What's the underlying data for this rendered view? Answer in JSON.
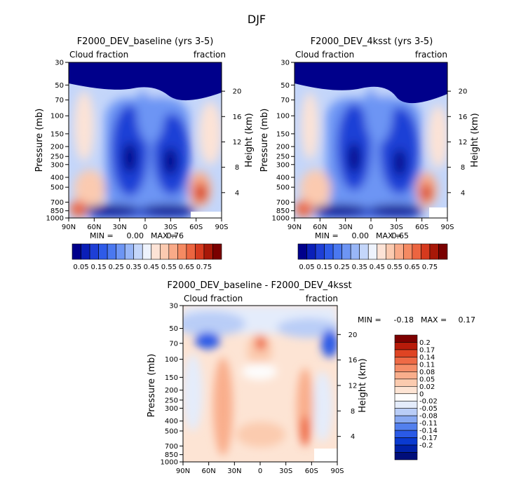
{
  "page": {
    "title": "DJF"
  },
  "colors": {
    "seq": [
      "#00008b",
      "#0a1fb8",
      "#1e3fd6",
      "#2e5be8",
      "#4a78f0",
      "#6d95f4",
      "#98b6f7",
      "#c4d6fa",
      "#eef3fd",
      "#fde3d6",
      "#fbcab0",
      "#f9aa88",
      "#f58a62",
      "#ec6540",
      "#d63a1e",
      "#a81808",
      "#7a0000"
    ],
    "diff": [
      "#000e7a",
      "#0021a8",
      "#0a3ad0",
      "#2a5ae6",
      "#5380ee",
      "#88a9f2",
      "#b9cdf7",
      "#e4ecfb",
      "#fdfdfd",
      "#fde4d4",
      "#fbcbaf",
      "#f9ae8c",
      "#f58d68",
      "#ee6a46",
      "#df4423",
      "#b81b0a",
      "#7d0000"
    ]
  },
  "chart_data": [
    {
      "type": "heatmap",
      "title": "F2000_DEV_baseline (yrs 3-5)",
      "left_label": "Cloud fraction",
      "right_label": "fraction",
      "ylabel": "Pressure (mb)",
      "y2label": "Height (km)",
      "x_ticks": [
        "90N",
        "60N",
        "30N",
        "0",
        "30S",
        "60S",
        "90S"
      ],
      "y_ticks": [
        30,
        50,
        70,
        100,
        150,
        200,
        250,
        300,
        400,
        500,
        700,
        850,
        1000
      ],
      "y2_ticks": [
        20,
        16,
        12,
        8,
        4
      ],
      "ylim": [
        30,
        1000
      ],
      "min_label": "MIN =",
      "min_value": "0.00",
      "max_label": "MAX =",
      "max_value": "0.76",
      "colorbar_labels": [
        "0.05",
        "0.15",
        "0.25",
        "0.35",
        "0.45",
        "0.55",
        "0.65",
        "0.75"
      ]
    },
    {
      "type": "heatmap",
      "title": "F2000_DEV_4ksst (yrs 3-5)",
      "left_label": "Cloud fraction",
      "right_label": "fraction",
      "ylabel": "Pressure (mb)",
      "y2label": "Height (km)",
      "x_ticks": [
        "90N",
        "60N",
        "30N",
        "0",
        "30S",
        "60S",
        "90S"
      ],
      "y_ticks": [
        30,
        50,
        70,
        100,
        150,
        200,
        250,
        300,
        400,
        500,
        700,
        850,
        1000
      ],
      "y2_ticks": [
        20,
        16,
        12,
        8,
        4
      ],
      "ylim": [
        30,
        1000
      ],
      "min_label": "MIN =",
      "min_value": "0.00",
      "max_label": "MAX =",
      "max_value": "0.65",
      "colorbar_labels": [
        "0.05",
        "0.15",
        "0.25",
        "0.35",
        "0.45",
        "0.55",
        "0.65",
        "0.75"
      ]
    },
    {
      "type": "heatmap",
      "title": "F2000_DEV_baseline - F2000_DEV_4ksst",
      "left_label": "Cloud fraction",
      "right_label": "fraction",
      "ylabel": "Pressure (mb)",
      "y2label": "Height (km)",
      "x_ticks": [
        "90N",
        "60N",
        "30N",
        "0",
        "30S",
        "60S",
        "90S"
      ],
      "y_ticks": [
        30,
        50,
        70,
        100,
        150,
        200,
        250,
        300,
        400,
        500,
        700,
        850,
        1000
      ],
      "y2_ticks": [
        20,
        16,
        12,
        8,
        4
      ],
      "ylim": [
        30,
        1000
      ],
      "min_label": "MIN =",
      "min_value": "-0.18",
      "max_label": "MAX =",
      "max_value": "0.17",
      "colorbar_labels": [
        "0.2",
        "0.17",
        "0.14",
        "0.11",
        "0.08",
        "0.05",
        "0.02",
        "0",
        "-0.02",
        "-0.05",
        "-0.08",
        "-0.11",
        "-0.14",
        "-0.17",
        "-0.2"
      ]
    }
  ]
}
